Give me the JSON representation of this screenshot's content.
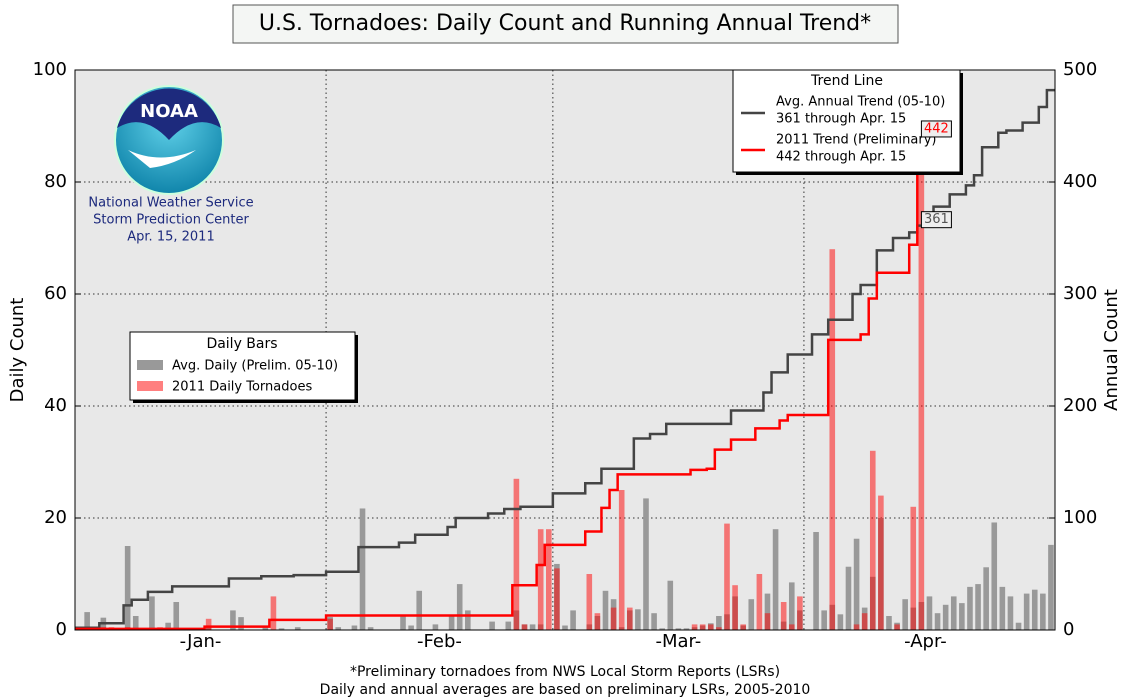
{
  "chart_data": {
    "type": "bar_trend",
    "title": "U.S. Tornadoes: Daily Count and Running Annual Trend*",
    "ylabel": "Daily Count",
    "y2label": "Annual Count",
    "footnotes": [
      "*Preliminary tornadoes from NWS Local Storm Reports (LSRs)",
      "Daily and annual averages are based on preliminary LSRs, 2005-2010"
    ],
    "logo_text": "NOAA",
    "credit": [
      "National Weather Service",
      "Storm Prediction Center",
      "Apr. 15, 2011"
    ],
    "legend_titles": {
      "bars": "Daily Bars",
      "trend": "Trend Line"
    },
    "xlim": [
      0,
      121
    ],
    "xticks": [
      {
        "value": 15.5,
        "label": "-Jan-"
      },
      {
        "value": 45,
        "label": "-Feb-"
      },
      {
        "value": 74.5,
        "label": "-Mar-"
      },
      {
        "value": 105,
        "label": "-Apr-"
      }
    ],
    "xgrid": [
      31,
      59,
      90
    ],
    "ylim": [
      0,
      100
    ],
    "yticks": [
      0,
      20,
      40,
      60,
      80,
      100
    ],
    "y2lim": [
      0,
      500
    ],
    "y2ticks": [
      0,
      100,
      200,
      300,
      400,
      500
    ],
    "grid": true,
    "series": [
      {
        "name": "Avg. Daily (Prelim. 05-10)",
        "kind": "bar",
        "color": "#999999",
        "values": [
          0,
          3.2,
          0,
          2.2,
          0,
          0,
          15,
          2.5,
          0,
          6,
          0,
          1.3,
          5,
          0,
          0.3,
          0,
          0.8,
          0,
          0,
          3.5,
          2.3,
          0,
          0,
          0.8,
          0,
          0.3,
          0,
          0.5,
          0,
          0,
          0,
          2.3,
          0.5,
          0,
          0.8,
          21.7,
          0.5,
          0,
          0,
          0,
          2.5,
          0.8,
          7,
          0,
          1,
          0,
          2.5,
          8.2,
          3.5,
          0,
          0,
          1.5,
          0,
          1.5,
          3.5,
          1,
          1,
          1,
          0,
          11.8,
          0.8,
          3.5,
          0,
          1,
          2.5,
          7,
          5.5,
          0.5,
          3.5,
          3.7,
          23.5,
          3,
          0.3,
          8.8,
          0.3,
          0.3,
          0.5,
          0.8,
          1.2,
          2.5,
          2.8,
          6,
          0.8,
          5.5,
          0,
          6.5,
          18,
          1.5,
          8.5,
          3.5,
          0,
          17.5,
          3.5,
          4.5,
          2.8,
          11.3,
          16.3,
          4,
          9.5,
          20,
          2.5,
          1.3,
          5.5,
          4,
          5,
          6,
          3,
          4.5,
          6,
          4.8,
          7.7,
          8.2,
          11.2,
          19.2,
          7.7,
          6,
          1.3,
          6.5,
          7.2,
          6.5,
          15.2
        ]
      },
      {
        "name": "2011 Daily Tornadoes",
        "kind": "bar",
        "color": "#ff0000",
        "values": [
          0.5,
          0.5,
          0.3,
          0.5,
          0.5,
          0.3,
          0.5,
          0,
          0.3,
          0.3,
          0.5,
          0.3,
          0.3,
          0.3,
          0,
          0,
          2,
          0,
          0,
          0,
          0,
          0,
          0,
          0,
          6,
          0,
          0,
          0,
          0,
          0,
          0,
          2,
          0,
          0,
          0,
          0,
          0,
          0,
          0,
          0,
          0,
          0,
          0,
          0,
          0,
          0,
          0,
          0,
          0,
          0,
          0,
          0,
          0,
          0,
          27,
          1,
          0,
          18,
          18,
          11,
          0,
          0,
          0,
          10,
          3,
          0,
          4,
          25,
          4,
          0,
          0,
          0,
          0,
          0,
          0,
          0,
          1,
          1,
          1,
          0.5,
          19,
          8,
          1,
          0,
          10,
          3,
          0,
          5,
          1,
          6,
          0,
          0,
          0,
          68,
          0,
          0,
          1,
          3,
          32,
          24,
          0,
          1,
          0,
          22,
          84
        ]
      },
      {
        "name": "Avg. Annual Trend (05-10)",
        "detail": "361 through Apr. 15",
        "kind": "line",
        "axis": "y2",
        "color": "#444444",
        "x": [
          0,
          3,
          6,
          7,
          9,
          12,
          19,
          23,
          27,
          31,
          35,
          40,
          42,
          46,
          47,
          51,
          53,
          55,
          59,
          63,
          65,
          69,
          71,
          73,
          81,
          85,
          86,
          88,
          91,
          93,
          96,
          97,
          99,
          101,
          103,
          104,
          106,
          108,
          110,
          111,
          112,
          114,
          115,
          117,
          119,
          120,
          121
        ],
        "values": [
          2,
          6,
          22,
          27,
          34,
          39,
          46,
          48,
          49,
          52,
          74,
          78,
          85,
          92,
          100,
          104,
          108,
          110,
          122,
          131,
          144,
          171,
          175,
          184,
          196,
          212,
          230,
          246,
          264,
          277,
          300,
          308,
          339,
          350,
          355,
          361,
          378,
          389,
          397,
          406,
          431,
          444,
          446,
          453,
          467,
          482,
          482
        ]
      },
      {
        "name": "2011 Trend (Preliminary)",
        "detail": "442 through Apr. 15",
        "kind": "line",
        "axis": "y2",
        "color": "#ff0000",
        "x": [
          0,
          16,
          24,
          31,
          54,
          57,
          58,
          63,
          65,
          66,
          67,
          76,
          78,
          79,
          81,
          84,
          87,
          88,
          93,
          97,
          98,
          99,
          103,
          104,
          105
        ],
        "values": [
          1,
          3,
          9,
          13,
          40,
          58,
          76,
          88,
          109,
          125,
          139,
          143,
          144,
          161,
          170,
          180,
          187,
          192,
          259,
          264,
          296,
          319,
          344,
          442,
          442
        ]
      }
    ],
    "annotations": [
      {
        "label": "442",
        "x": 105,
        "y": 442,
        "color": "#ff0000"
      },
      {
        "label": "361",
        "x": 105,
        "y": 361,
        "color": "#555555"
      }
    ]
  }
}
